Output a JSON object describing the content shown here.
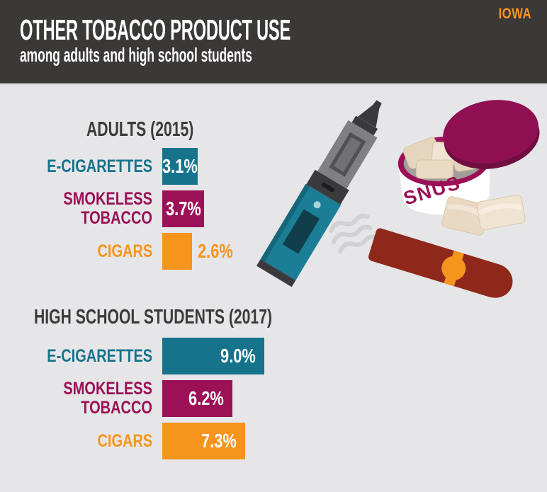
{
  "brand": "IOWA",
  "header": {
    "title": "OTHER TOBACCO PRODUCT USE",
    "subtitle": "among adults and high school students"
  },
  "colors": {
    "teal": "#16738C",
    "magenta": "#9B1056",
    "orange": "#F7941E",
    "header_bg": "#3B3838",
    "background": "#E6E6E8",
    "text_dark": "#3D3A3A",
    "brand_orange": "#F7941E",
    "cigar_brick": "#8E281B",
    "vape_teal": "#1B7E96",
    "smoke_gray": "#D1D1D3"
  },
  "chart_data": [
    {
      "type": "bar",
      "orientation": "horizontal",
      "title": "ADULTS (2015)",
      "unit": "%",
      "xlim": [
        0,
        10
      ],
      "grid": false,
      "legend": false,
      "categories": [
        "E-CIGARETTES",
        "SMOKELESS TOBACCO",
        "CIGARS"
      ],
      "values": [
        3.1,
        3.7,
        2.6
      ],
      "rows": [
        {
          "label": "E-CIGARETTES",
          "value": 3.1,
          "display": "3.1%",
          "color_key": "teal",
          "value_placement": "center"
        },
        {
          "label": "SMOKELESS TOBACCO",
          "value": 3.7,
          "display": "3.7%",
          "color_key": "magenta",
          "value_placement": "center"
        },
        {
          "label": "CIGARS",
          "value": 2.6,
          "display": "2.6%",
          "color_key": "orange",
          "value_placement": "outside"
        }
      ]
    },
    {
      "type": "bar",
      "orientation": "horizontal",
      "title": "HIGH SCHOOL STUDENTS (2017)",
      "unit": "%",
      "xlim": [
        0,
        10
      ],
      "grid": false,
      "legend": false,
      "categories": [
        "E-CIGARETTES",
        "SMOKELESS TOBACCO",
        "CIGARS"
      ],
      "values": [
        9.0,
        6.2,
        7.3
      ],
      "rows": [
        {
          "label": "E-CIGARETTES",
          "value": 9.0,
          "display": "9.0%",
          "color_key": "teal",
          "value_placement": "right"
        },
        {
          "label": "SMOKELESS TOBACCO",
          "value": 6.2,
          "display": "6.2%",
          "color_key": "magenta",
          "value_placement": "right"
        },
        {
          "label": "CIGARS",
          "value": 7.3,
          "display": "7.3%",
          "color_key": "orange",
          "value_placement": "right"
        }
      ]
    }
  ],
  "illustrations": {
    "snus_label": "SNUS",
    "items": [
      "e-cigarette",
      "snus-can",
      "cigar",
      "smoke"
    ]
  }
}
